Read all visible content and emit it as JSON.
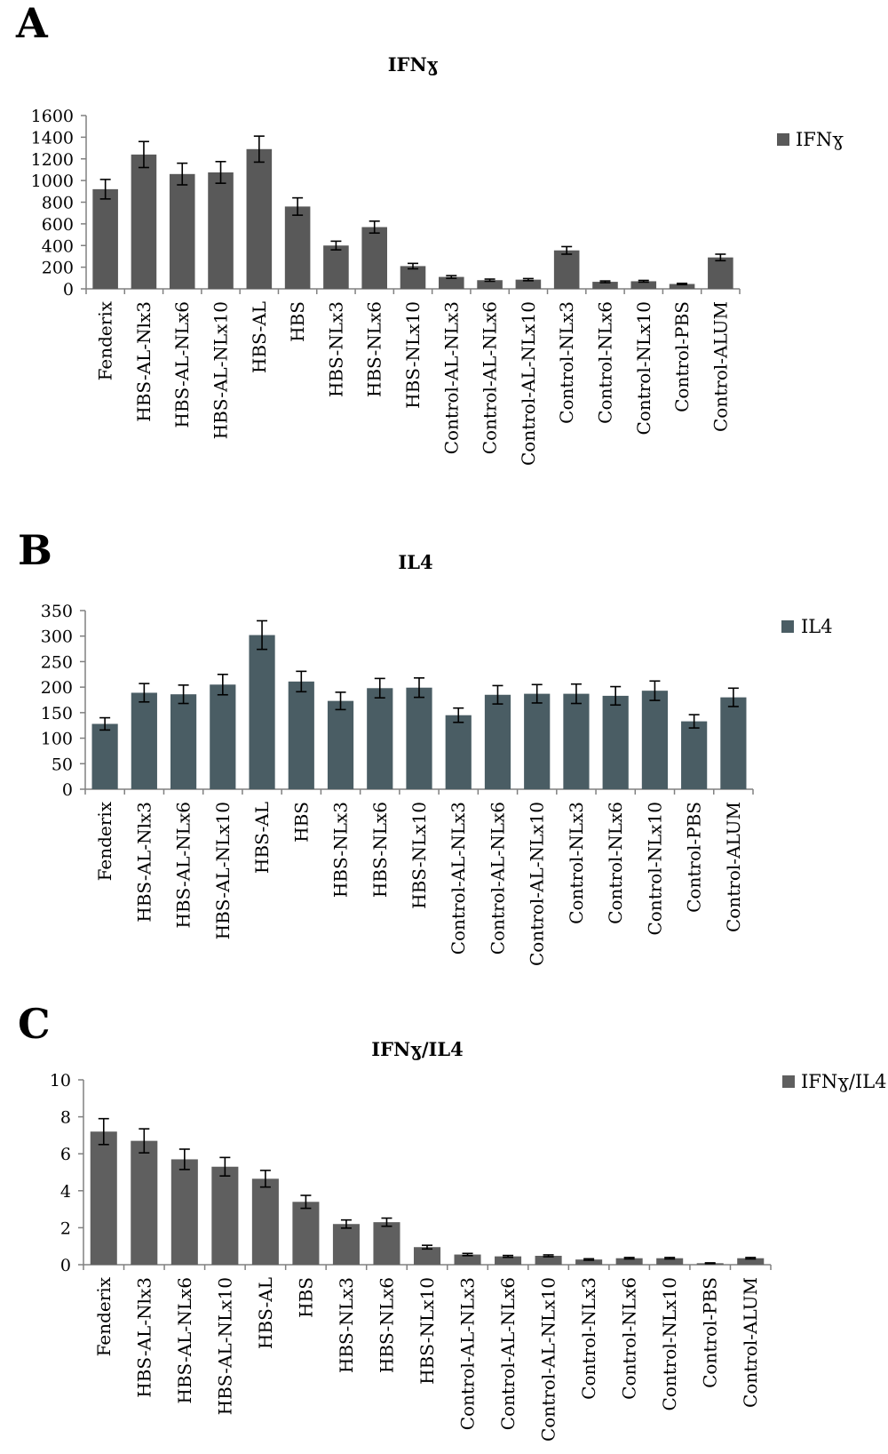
{
  "chart_data": [
    {
      "panel_label": "A",
      "type": "bar",
      "title": "IFNɣ",
      "legend": [
        "IFNɣ"
      ],
      "legend_position": "right",
      "ylim": [
        0,
        1600
      ],
      "yticks": [
        0,
        200,
        400,
        600,
        800,
        1000,
        1200,
        1400,
        1600
      ],
      "color": "#595959",
      "categories": [
        "Fenderix",
        "HBS-AL-Nlx3",
        "HBS-AL-NLx6",
        "HBS-AL-NLx10",
        "HBS-AL",
        "HBS",
        "HBS-NLx3",
        "HBS-NLx6",
        "HBS-NLx10",
        "Control-AL-NLx3",
        "Control-AL-NLx6",
        "Control-AL-NLx10",
        "Control-NLx3",
        "Control-NLx6",
        "Control-NLx10",
        "Control-PBS",
        "Control-ALUM"
      ],
      "series": [
        {
          "name": "IFNɣ",
          "values": [
            920,
            1240,
            1060,
            1075,
            1290,
            760,
            400,
            570,
            210,
            110,
            80,
            85,
            355,
            65,
            70,
            45,
            290
          ],
          "errors": [
            90,
            120,
            100,
            100,
            120,
            80,
            40,
            55,
            25,
            12,
            10,
            10,
            35,
            8,
            8,
            6,
            30
          ]
        }
      ]
    },
    {
      "panel_label": "B",
      "type": "bar",
      "title": "IL4",
      "legend": [
        "IL4"
      ],
      "legend_position": "right",
      "ylim": [
        0,
        350
      ],
      "yticks": [
        0,
        50,
        100,
        150,
        200,
        250,
        300,
        350
      ],
      "color": "#4a5d64",
      "categories": [
        "Fenderix",
        "HBS-AL-Nlx3",
        "HBS-AL-NLx6",
        "HBS-AL-NLx10",
        "HBS-AL",
        "HBS",
        "HBS-NLx3",
        "HBS-NLx6",
        "HBS-NLx10",
        "Control-AL-NLx3",
        "Control-AL-NLx6",
        "Control-AL-NLx10",
        "Control-NLx3",
        "Control-NLx6",
        "Control-NLx10",
        "Control-PBS",
        "Control-ALUM"
      ],
      "series": [
        {
          "name": "IL4",
          "values": [
            128,
            189,
            186,
            205,
            302,
            211,
            173,
            198,
            199,
            145,
            185,
            187,
            187,
            183,
            193,
            133,
            180
          ],
          "errors": [
            12,
            18,
            18,
            20,
            28,
            20,
            17,
            19,
            19,
            14,
            18,
            18,
            19,
            18,
            19,
            13,
            18
          ]
        }
      ]
    },
    {
      "panel_label": "C",
      "type": "bar",
      "title": "IFNɣ/IL4",
      "legend": [
        "IFNɣ/IL4"
      ],
      "legend_position": "right",
      "ylim": [
        0,
        10
      ],
      "yticks": [
        0,
        2,
        4,
        6,
        8,
        10
      ],
      "color": "#5f5f5f",
      "categories": [
        "Fenderix",
        "HBS-AL-Nlx3",
        "HBS-AL-NLx6",
        "HBS-AL-NLx10",
        "HBS-AL",
        "HBS",
        "HBS-NLx3",
        "HBS-NLx6",
        "HBS-NLx10",
        "Control-AL-NLx3",
        "Control-AL-NLx6",
        "Control-AL-NLx10",
        "Control-NLx3",
        "Control-NLx6",
        "Control-NLx10",
        "Control-PBS",
        "Control-ALUM"
      ],
      "series": [
        {
          "name": "IFNɣ/IL4",
          "values": [
            7.2,
            6.7,
            5.7,
            5.3,
            4.65,
            3.4,
            2.2,
            2.3,
            0.95,
            0.55,
            0.45,
            0.48,
            0.28,
            0.35,
            0.35,
            0.08,
            0.35
          ],
          "errors": [
            0.7,
            0.65,
            0.55,
            0.5,
            0.45,
            0.35,
            0.22,
            0.22,
            0.1,
            0.06,
            0.05,
            0.05,
            0.04,
            0.04,
            0.04,
            0.02,
            0.04
          ]
        }
      ]
    }
  ]
}
